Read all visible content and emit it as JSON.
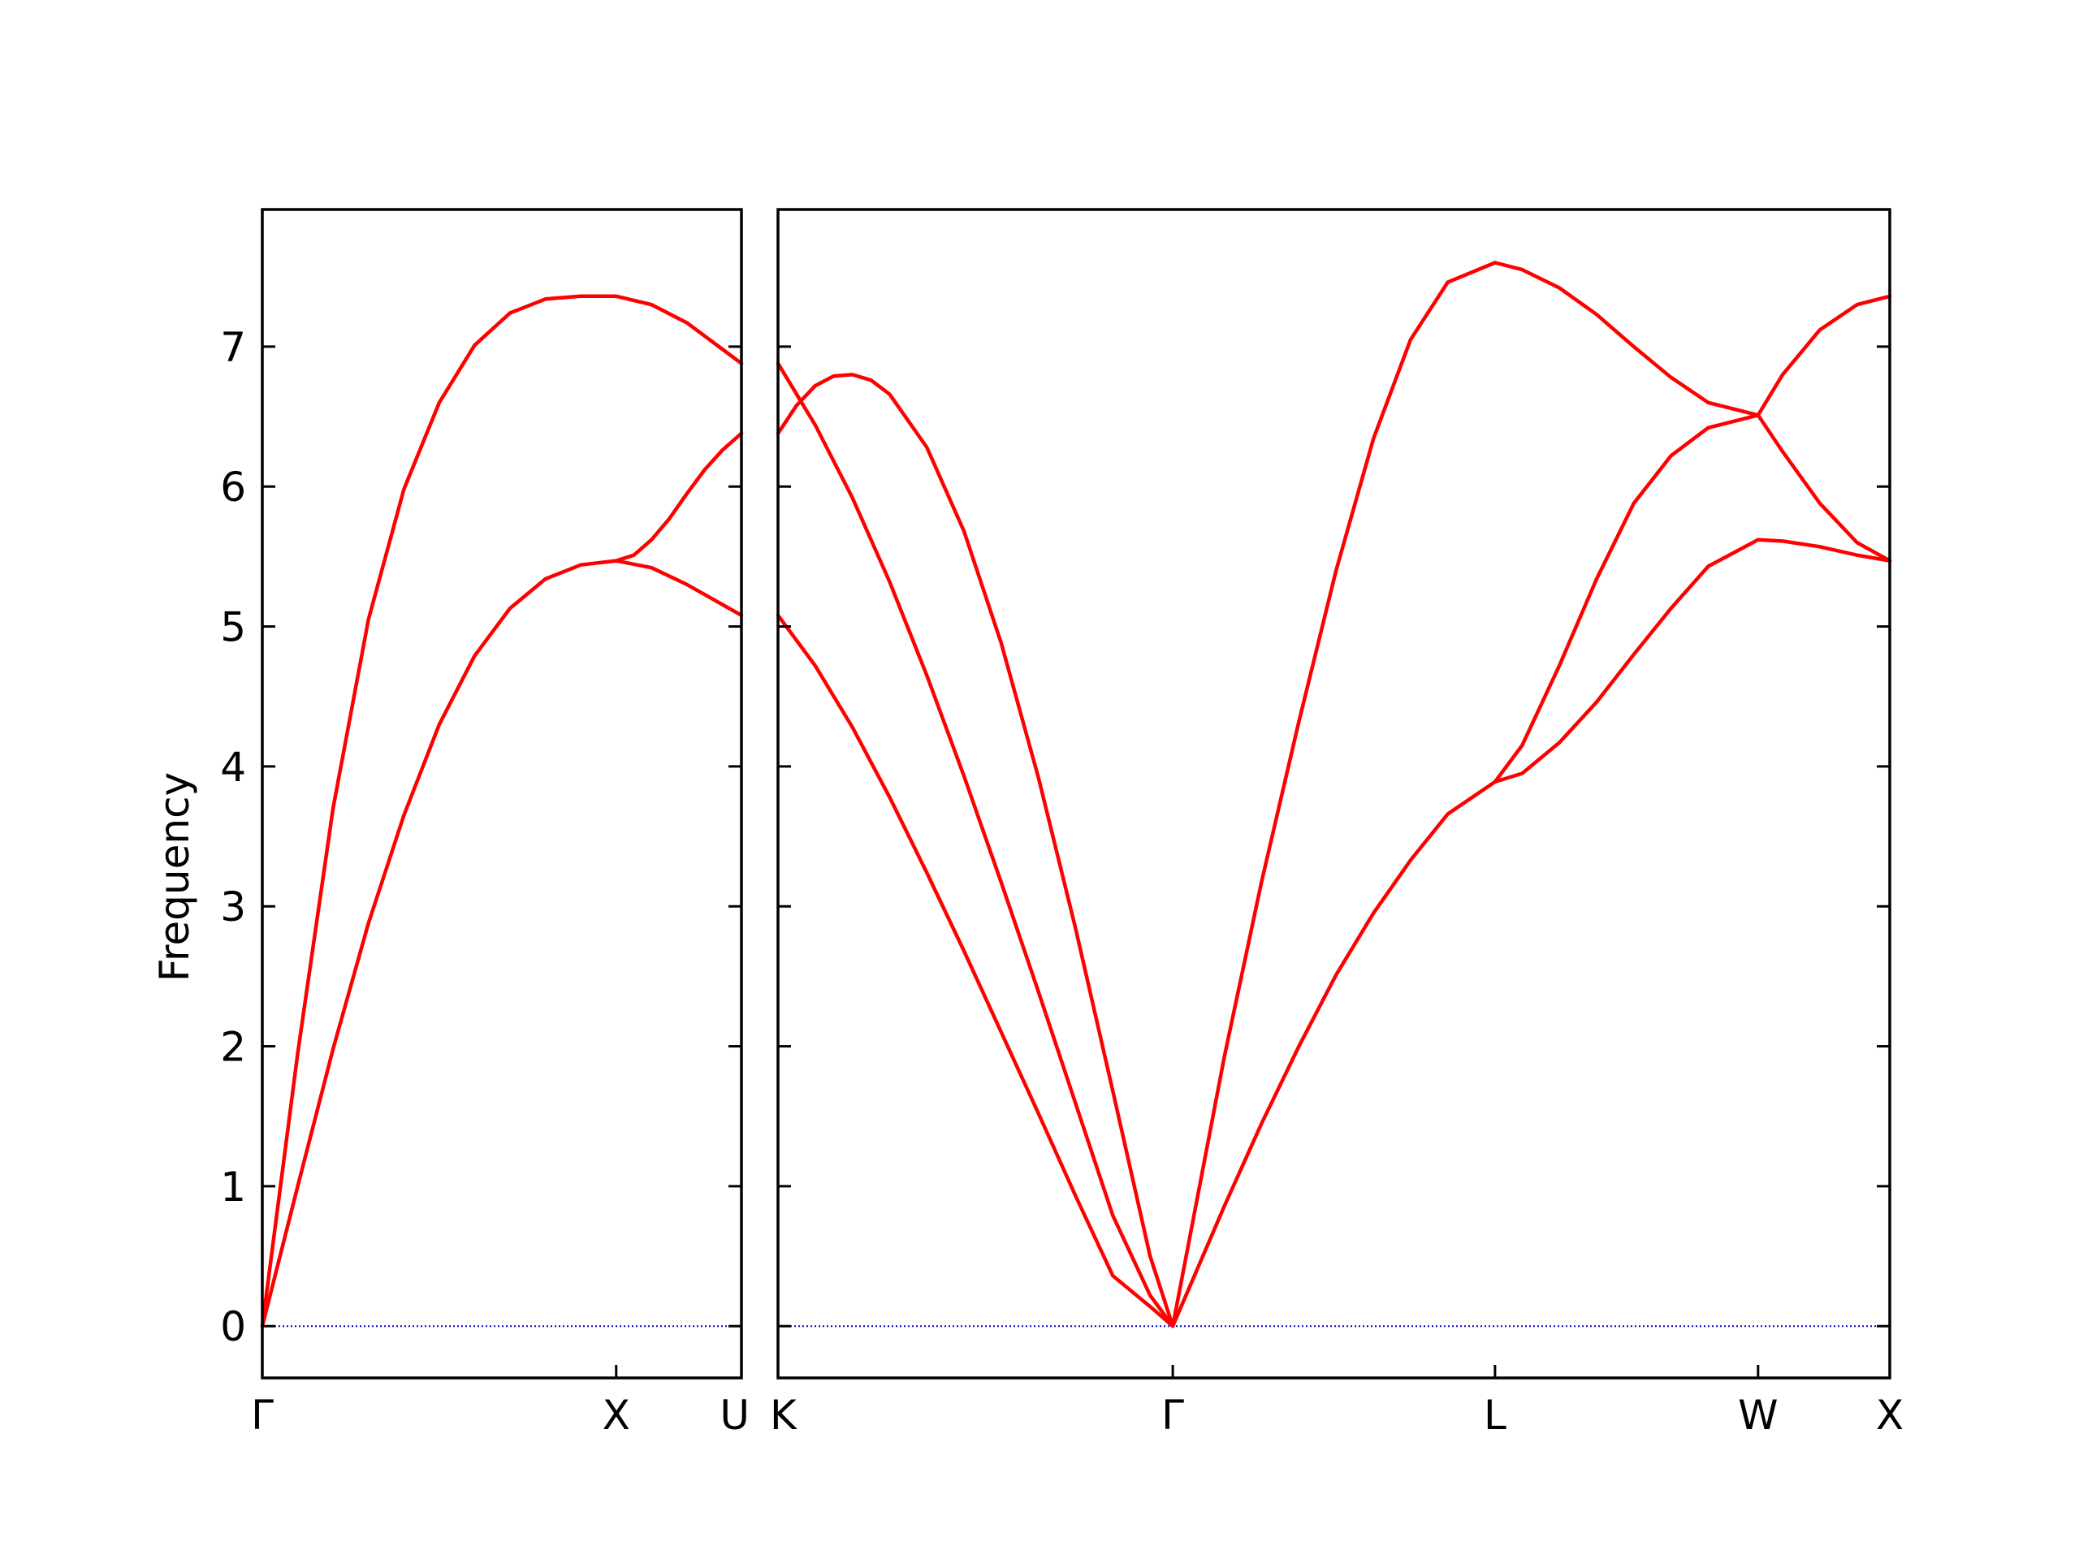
{
  "chart_data": {
    "type": "line",
    "ylabel": "Frequency",
    "ylim": [
      -0.37,
      7.98
    ],
    "yticks": [
      0,
      1,
      2,
      3,
      4,
      5,
      6,
      7
    ],
    "grid": false,
    "colors": {
      "band": "#ff0000",
      "zero_line": "#0000cc",
      "axes": "#000000"
    },
    "panels": [
      {
        "xticks": [
          {
            "x": 0.0,
            "label": "Γ"
          },
          {
            "x": 1.0,
            "label": "X"
          },
          {
            "x": 1.354,
            "label": "U"
          }
        ],
        "xlim": [
          0.0,
          1.354
        ],
        "series": [
          {
            "x": [
              0.0,
              0.1,
              0.2,
              0.3,
              0.4,
              0.5,
              0.6,
              0.7,
              0.8,
              0.9,
              1.0,
              1.1,
              1.2,
              1.354
            ],
            "y": [
              0.0,
              1.0,
              1.98,
              2.88,
              3.65,
              4.3,
              4.79,
              5.13,
              5.34,
              5.44,
              5.47,
              5.42,
              5.3,
              5.08
            ]
          },
          {
            "x": [
              0.0,
              0.1,
              0.2,
              0.3,
              0.4,
              0.5,
              0.6,
              0.7,
              0.8,
              0.9,
              1.0,
              1.1,
              1.2,
              1.354
            ],
            "y": [
              0.0,
              1.95,
              3.7,
              5.05,
              5.98,
              6.6,
              7.01,
              7.24,
              7.34,
              7.36,
              7.36,
              7.3,
              7.17,
              6.88
            ]
          },
          {
            "x": [
              1.0,
              1.05,
              1.1,
              1.15,
              1.2,
              1.25,
              1.3,
              1.354
            ],
            "y": [
              5.47,
              5.51,
              5.62,
              5.77,
              5.95,
              6.12,
              6.26,
              6.38
            ]
          }
        ]
      },
      {
        "xticks": [
          {
            "x": 0.0,
            "label": "K"
          },
          {
            "x": 1.061,
            "label": "Γ"
          },
          {
            "x": 1.927,
            "label": "L"
          },
          {
            "x": 2.634,
            "label": "W"
          },
          {
            "x": 2.988,
            "label": "X"
          }
        ],
        "xlim": [
          0.0,
          2.988
        ],
        "series": [
          {
            "x": [
              0.0,
              0.1,
              0.2,
              0.3,
              0.4,
              0.5,
              0.6,
              0.7,
              0.8,
              0.9,
              1.0,
              1.061
            ],
            "y": [
              5.08,
              4.72,
              4.28,
              3.78,
              3.24,
              2.68,
              2.1,
              1.52,
              0.93,
              0.36,
              0.14,
              0.0
            ]
          },
          {
            "x": [
              0.0,
              0.1,
              0.2,
              0.3,
              0.4,
              0.5,
              0.6,
              0.7,
              0.8,
              0.9,
              1.0,
              1.061
            ],
            "y": [
              6.88,
              6.44,
              5.92,
              5.32,
              4.65,
              3.93,
              3.17,
              2.39,
              1.59,
              0.79,
              0.22,
              0.0
            ]
          },
          {
            "x": [
              0.0,
              0.05,
              0.1,
              0.15,
              0.2,
              0.25,
              0.3,
              0.4,
              0.5,
              0.6,
              0.7,
              0.8,
              0.9,
              1.0,
              1.061
            ],
            "y": [
              6.38,
              6.58,
              6.72,
              6.79,
              6.8,
              6.76,
              6.66,
              6.28,
              5.68,
              4.88,
              3.92,
              2.84,
              1.68,
              0.5,
              0.0
            ]
          },
          {
            "x": [
              1.061,
              1.2,
              1.3,
              1.4,
              1.5,
              1.6,
              1.7,
              1.8,
              1.927
            ],
            "y": [
              0.0,
              0.86,
              1.45,
              2.0,
              2.51,
              2.95,
              3.33,
              3.66,
              3.89
            ]
          },
          {
            "x": [
              1.061,
              1.2,
              1.3,
              1.4,
              1.5,
              1.6,
              1.7,
              1.8,
              1.927
            ],
            "y": [
              0.0,
              1.93,
              3.18,
              4.32,
              5.4,
              6.34,
              7.05,
              7.46,
              7.6
            ]
          },
          {
            "x": [
              1.927,
              2.0,
              2.1,
              2.2,
              2.3,
              2.4,
              2.5,
              2.634
            ],
            "y": [
              3.89,
              3.95,
              4.17,
              4.46,
              4.8,
              5.13,
              5.43,
              5.62
            ]
          },
          {
            "x": [
              1.927,
              2.0,
              2.1,
              2.2,
              2.3,
              2.4,
              2.5,
              2.634
            ],
            "y": [
              3.89,
              4.15,
              4.72,
              5.34,
              5.88,
              6.22,
              6.42,
              6.51
            ]
          },
          {
            "x": [
              1.927,
              2.0,
              2.1,
              2.2,
              2.3,
              2.4,
              2.5,
              2.634
            ],
            "y": [
              7.6,
              7.55,
              7.42,
              7.23,
              7.0,
              6.78,
              6.6,
              6.51
            ]
          },
          {
            "x": [
              2.634,
              2.7,
              2.8,
              2.9,
              2.988
            ],
            "y": [
              5.62,
              5.61,
              5.57,
              5.51,
              5.47
            ]
          },
          {
            "x": [
              2.634,
              2.7,
              2.8,
              2.9,
              2.988
            ],
            "y": [
              6.51,
              6.25,
              5.88,
              5.6,
              5.47
            ]
          },
          {
            "x": [
              2.634,
              2.7,
              2.8,
              2.9,
              2.988
            ],
            "y": [
              6.51,
              6.8,
              7.12,
              7.3,
              7.36
            ]
          }
        ]
      }
    ]
  }
}
